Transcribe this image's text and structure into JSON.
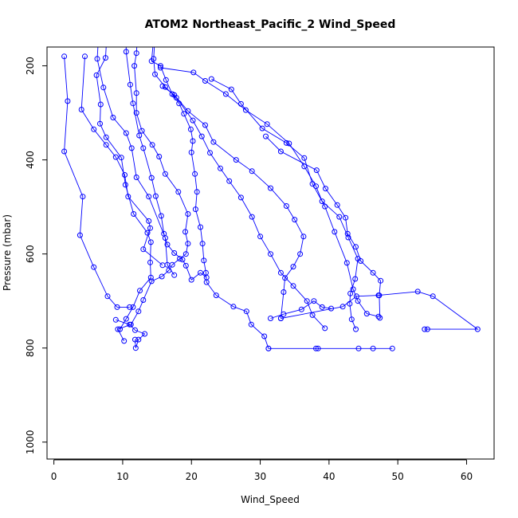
{
  "chart_data": {
    "type": "line",
    "title": "ATOM2 Northeast_Pacific_2 Wind_Speed",
    "xlabel": "Wind_Speed",
    "ylabel": "Pressure (mbar)",
    "xlim": [
      -1,
      64
    ],
    "ylim": [
      1036,
      160
    ],
    "y_reversed": true,
    "x_ticks": [
      0,
      10,
      20,
      30,
      40,
      50,
      60
    ],
    "y_ticks": [
      200,
      400,
      600,
      800,
      1000
    ],
    "grid": false,
    "marker": "open-circle",
    "color": "#0000ff",
    "series": [
      {
        "points": [
          [
            1.5,
            180
          ],
          [
            2,
            275
          ],
          [
            1.5,
            382
          ],
          [
            4.2,
            478
          ],
          [
            3.8,
            560
          ],
          [
            5.8,
            628
          ],
          [
            7.8,
            690
          ],
          [
            9.2,
            713
          ],
          [
            11,
            713
          ]
        ]
      },
      {
        "points": [
          [
            4.5,
            180
          ],
          [
            4,
            293
          ],
          [
            5.8,
            335
          ],
          [
            7.6,
            368
          ],
          [
            9,
            394
          ],
          [
            10.3,
            432
          ],
          [
            10.8,
            478
          ],
          [
            13.8,
            530
          ],
          [
            14,
            545
          ],
          [
            13,
            590
          ],
          [
            15.8,
            624
          ]
        ]
      },
      {
        "points": [
          [
            6.8,
            62
          ],
          [
            6.3,
            185
          ],
          [
            7.2,
            246
          ],
          [
            8.6,
            310
          ],
          [
            10.5,
            343
          ],
          [
            11.3,
            375
          ],
          [
            12,
            437
          ],
          [
            13.8,
            478
          ],
          [
            16.2,
            566
          ],
          [
            16.5,
            623
          ],
          [
            17.5,
            645
          ]
        ]
      },
      {
        "points": [
          [
            8,
            62
          ],
          [
            7.5,
            183
          ],
          [
            6.2,
            220
          ],
          [
            6.8,
            282
          ],
          [
            6.7,
            323
          ],
          [
            7.6,
            352
          ],
          [
            9.8,
            395
          ],
          [
            10.4,
            453
          ],
          [
            11.6,
            515
          ],
          [
            13.6,
            555
          ],
          [
            14.1,
            575
          ],
          [
            14,
            618
          ],
          [
            14.1,
            650
          ],
          [
            12.5,
            678
          ],
          [
            11.5,
            713
          ],
          [
            10.5,
            738
          ],
          [
            9.6,
            760
          ]
        ]
      },
      {
        "points": [
          [
            10.5,
            62
          ],
          [
            10.5,
            170
          ],
          [
            11.1,
            240
          ],
          [
            11.5,
            280
          ],
          [
            12.4,
            348
          ],
          [
            13,
            375
          ],
          [
            14.2,
            438
          ],
          [
            14.8,
            477
          ],
          [
            15.6,
            519
          ],
          [
            16,
            557
          ],
          [
            16.5,
            580
          ],
          [
            17.5,
            598
          ],
          [
            18.7,
            612
          ],
          [
            19.2,
            625
          ],
          [
            20,
            655
          ],
          [
            21.3,
            640
          ],
          [
            22.2,
            650
          ]
        ]
      },
      {
        "points": [
          [
            12.5,
            60
          ],
          [
            12,
            173
          ],
          [
            11.7,
            200
          ],
          [
            12,
            258
          ],
          [
            12,
            300
          ],
          [
            12.8,
            338
          ],
          [
            14.3,
            368
          ],
          [
            15.3,
            393
          ],
          [
            16.2,
            430
          ],
          [
            18.1,
            468
          ],
          [
            19.5,
            515
          ],
          [
            19.1,
            553
          ],
          [
            19.5,
            578
          ],
          [
            19.2,
            600
          ],
          [
            18.3,
            610
          ],
          [
            17.2,
            623
          ],
          [
            16.7,
            635
          ],
          [
            15.7,
            648
          ],
          [
            14.2,
            658
          ],
          [
            13,
            698
          ],
          [
            12.3,
            722
          ],
          [
            11.2,
            750
          ],
          [
            9.3,
            760
          ],
          [
            10.2,
            785
          ]
        ]
      },
      {
        "points": [
          [
            15,
            62
          ],
          [
            14.2,
            190
          ],
          [
            15.5,
            200
          ],
          [
            16.3,
            230
          ],
          [
            17.2,
            260
          ],
          [
            18.2,
            280
          ],
          [
            18.9,
            302
          ],
          [
            19.9,
            335
          ],
          [
            20.2,
            360
          ],
          [
            20,
            384
          ],
          [
            20.5,
            430
          ],
          [
            20.8,
            468
          ],
          [
            20.6,
            505
          ],
          [
            21.3,
            543
          ],
          [
            21.6,
            578
          ],
          [
            21.8,
            614
          ],
          [
            22.1,
            640
          ],
          [
            22.2,
            660
          ],
          [
            23.6,
            688
          ],
          [
            26.1,
            712
          ],
          [
            28,
            722
          ],
          [
            28.7,
            750
          ],
          [
            30.6,
            775
          ],
          [
            31.2,
            801
          ]
        ]
      },
      {
        "points": [
          [
            15,
            62
          ],
          [
            14.5,
            185
          ],
          [
            14.7,
            218
          ],
          [
            16.2,
            245
          ],
          [
            17.8,
            268
          ],
          [
            20.2,
            316
          ],
          [
            21.5,
            350
          ],
          [
            22.7,
            385
          ],
          [
            24.2,
            418
          ],
          [
            25.5,
            445
          ],
          [
            27.2,
            480
          ],
          [
            28.8,
            521
          ],
          [
            30,
            563
          ],
          [
            31.5,
            600
          ],
          [
            33,
            640
          ],
          [
            34.8,
            668
          ],
          [
            36.8,
            700
          ],
          [
            37.6,
            730
          ],
          [
            39.4,
            758
          ]
        ]
      },
      {
        "points": [
          [
            9,
            740
          ],
          [
            11,
            750
          ],
          [
            11.8,
            762
          ],
          [
            13.2,
            770
          ],
          [
            12.3,
            782
          ],
          [
            11.9,
            800
          ],
          [
            11.8,
            782
          ]
        ]
      },
      {
        "points": [
          [
            31.5,
            737
          ],
          [
            33.4,
            728
          ],
          [
            36,
            718
          ],
          [
            37.8,
            700
          ],
          [
            39,
            713
          ],
          [
            40.3,
            716
          ]
        ]
      },
      {
        "points": [
          [
            33,
            737
          ],
          [
            42,
            712
          ],
          [
            44,
            690
          ],
          [
            47.2,
            688
          ],
          [
            52.9,
            680
          ],
          [
            55.1,
            690
          ],
          [
            61.6,
            760
          ],
          [
            54.3,
            760
          ],
          [
            53.9,
            760
          ]
        ]
      },
      {
        "points": [
          [
            31.2,
            801
          ],
          [
            38.1,
            801
          ],
          [
            38.4,
            801
          ],
          [
            44.3,
            801
          ],
          [
            46.4,
            801
          ],
          [
            49.2,
            801
          ]
        ]
      },
      {
        "points": [
          [
            30.8,
            350
          ],
          [
            33,
            382
          ],
          [
            38.2,
            422
          ],
          [
            39.5,
            461
          ],
          [
            41.2,
            496
          ],
          [
            42.4,
            523
          ],
          [
            42.7,
            557
          ],
          [
            43.9,
            585
          ],
          [
            44.6,
            615
          ],
          [
            46.4,
            640
          ],
          [
            47.5,
            657
          ],
          [
            47.3,
            688
          ],
          [
            47.4,
            736
          ]
        ]
      },
      {
        "points": [
          [
            22.9,
            228
          ],
          [
            25.8,
            250
          ],
          [
            27.2,
            281
          ],
          [
            30.3,
            333
          ],
          [
            33.8,
            364
          ],
          [
            36.4,
            396
          ],
          [
            37.6,
            451
          ],
          [
            39.4,
            499
          ],
          [
            40.8,
            553
          ],
          [
            42.6,
            619
          ],
          [
            43.5,
            675
          ],
          [
            44.2,
            700
          ],
          [
            45.5,
            727
          ],
          [
            47.2,
            733
          ]
        ]
      },
      {
        "points": [
          [
            15.5,
            204
          ],
          [
            20.3,
            214
          ],
          [
            22,
            232
          ],
          [
            25,
            260
          ],
          [
            27.9,
            294
          ],
          [
            31,
            324
          ],
          [
            34.2,
            365
          ],
          [
            36.4,
            414
          ],
          [
            38.1,
            456
          ],
          [
            39,
            488
          ],
          [
            41.5,
            521
          ],
          [
            42.8,
            565
          ],
          [
            44.2,
            610
          ],
          [
            43.8,
            653
          ],
          [
            43.1,
            684
          ],
          [
            43,
            706
          ],
          [
            43.3,
            739
          ],
          [
            43.9,
            760
          ]
        ]
      },
      {
        "points": [
          [
            15.8,
            243
          ],
          [
            17.5,
            262
          ],
          [
            19.5,
            296
          ],
          [
            22,
            326
          ],
          [
            23.2,
            362
          ],
          [
            26.5,
            400
          ],
          [
            28.8,
            424
          ],
          [
            31.5,
            460
          ],
          [
            33.8,
            498
          ],
          [
            35,
            527
          ],
          [
            36.3,
            563
          ],
          [
            35.8,
            600
          ],
          [
            34.8,
            627
          ],
          [
            33.6,
            651
          ],
          [
            33.4,
            681
          ],
          [
            33,
            737
          ]
        ]
      }
    ]
  }
}
